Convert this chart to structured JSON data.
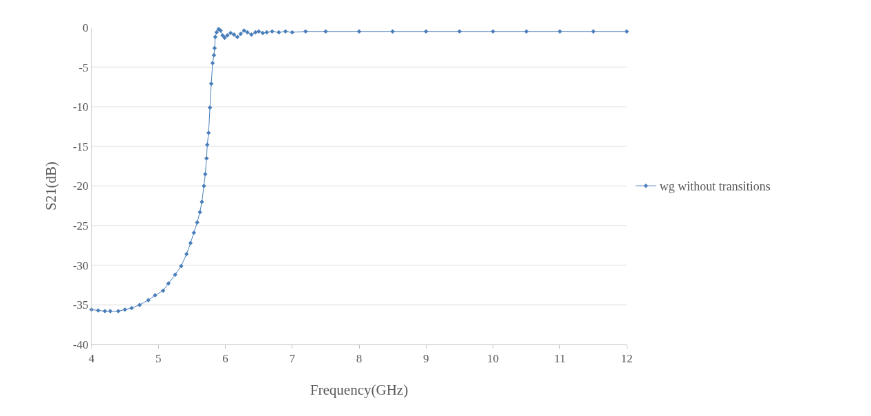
{
  "chart_data": {
    "type": "line",
    "xlabel": "Frequency(GHz)",
    "ylabel": "S21(dB)",
    "xlim": [
      4,
      12
    ],
    "xticks": [
      4,
      5,
      6,
      7,
      8,
      9,
      10,
      11,
      12
    ],
    "ylim": [
      -40,
      0
    ],
    "yticks": [
      -40,
      -35,
      -30,
      -25,
      -20,
      -15,
      -10,
      -5,
      0
    ],
    "grid": "y",
    "legend": "right",
    "marker": "diamond",
    "line_style": "solid",
    "series": [
      {
        "name": "wg without transitions",
        "color": "#4a7ebb",
        "x": [
          4,
          4.1,
          4.2,
          4.28,
          4.4,
          4.5,
          4.6,
          4.72,
          4.85,
          4.95,
          5.07,
          5.15,
          5.25,
          5.34,
          5.42,
          5.48,
          5.53,
          5.58,
          5.62,
          5.65,
          5.68,
          5.7,
          5.72,
          5.73,
          5.75,
          5.77,
          5.79,
          5.81,
          5.83,
          5.84,
          5.85,
          5.87,
          5.9,
          5.93,
          5.96,
          5.99,
          6.03,
          6.08,
          6.13,
          6.18,
          6.23,
          6.28,
          6.33,
          6.39,
          6.45,
          6.5,
          6.56,
          6.62,
          6.7,
          6.8,
          6.9,
          7,
          7.2,
          7.5,
          8,
          8.5,
          9,
          9.5,
          10,
          10.5,
          11,
          11.5,
          12
        ],
        "values": [
          -35.6,
          -35.7,
          -35.8,
          -35.8,
          -35.8,
          -35.6,
          -35.4,
          -35.0,
          -34.4,
          -33.8,
          -33.2,
          -32.3,
          -31.2,
          -30.1,
          -28.6,
          -27.2,
          -25.9,
          -24.6,
          -23.3,
          -22.0,
          -20.0,
          -18.5,
          -16.5,
          -14.8,
          -13.3,
          -10.1,
          -7.1,
          -4.5,
          -3.5,
          -2.6,
          -1.2,
          -0.6,
          -0.2,
          -0.4,
          -1.0,
          -1.3,
          -1.0,
          -0.7,
          -0.9,
          -1.2,
          -0.8,
          -0.4,
          -0.6,
          -0.9,
          -0.6,
          -0.5,
          -0.7,
          -0.6,
          -0.5,
          -0.6,
          -0.5,
          -0.6,
          -0.5,
          -0.5,
          -0.5,
          -0.5,
          -0.5,
          -0.5,
          -0.5,
          -0.5,
          -0.5,
          -0.5,
          -0.5
        ]
      }
    ]
  }
}
